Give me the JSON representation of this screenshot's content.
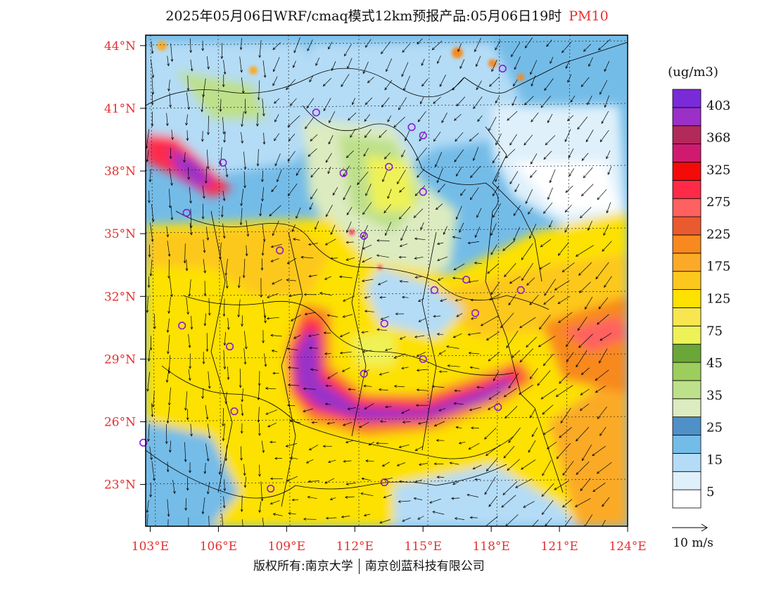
{
  "title": {
    "main": "2025年05月06日WRF/cmaq模式12km预报产品:05月06日19时",
    "pollutant": "PM10"
  },
  "map": {
    "lat_labels": [
      "44°N",
      "41°N",
      "38°N",
      "35°N",
      "32°N",
      "29°N",
      "26°N",
      "23°N"
    ],
    "lat_values": [
      44,
      41,
      38,
      35,
      32,
      29,
      26,
      23
    ],
    "lon_labels": [
      "103°E",
      "106°E",
      "109°E",
      "112°E",
      "115°E",
      "118°E",
      "121°E",
      "124°E"
    ],
    "lon_values": [
      103,
      106,
      109,
      112,
      115,
      118,
      121,
      124
    ],
    "lat_range": [
      21,
      44.5
    ],
    "lon_range": [
      102.8,
      124
    ],
    "label_color": "#e53030"
  },
  "legend": {
    "unit": "(ug/m3)",
    "ticks": [
      "5",
      "15",
      "25",
      "35",
      "45",
      "75",
      "125",
      "175",
      "225",
      "275",
      "325",
      "368",
      "403"
    ],
    "colors": [
      "#ffffff",
      "#dff0fb",
      "#b4dcf6",
      "#74bce8",
      "#4f90c9",
      "#dcebc0",
      "#bde08a",
      "#9dcd5c",
      "#6aa638",
      "#eef256",
      "#f8e650",
      "#fde100",
      "#fdc81e",
      "#fbaa28",
      "#f8891e",
      "#e95a2e",
      "#ff6060",
      "#ff2a48",
      "#f50a0a",
      "#d01a70",
      "#b22a5a",
      "#9a30c8",
      "#7a2bd8"
    ]
  },
  "wind": {
    "scale_label": "10 m/s"
  },
  "cities": [
    {
      "lon": 110.3,
      "lat": 40.8
    },
    {
      "lon": 115.0,
      "lat": 39.7
    },
    {
      "lon": 114.5,
      "lat": 40.1
    },
    {
      "lon": 118.5,
      "lat": 42.9
    },
    {
      "lon": 106.2,
      "lat": 38.4
    },
    {
      "lon": 111.5,
      "lat": 37.9
    },
    {
      "lon": 113.5,
      "lat": 38.2
    },
    {
      "lon": 115.0,
      "lat": 37.0
    },
    {
      "lon": 104.6,
      "lat": 36.0
    },
    {
      "lon": 112.4,
      "lat": 34.9
    },
    {
      "lon": 108.7,
      "lat": 34.2
    },
    {
      "lon": 116.9,
      "lat": 32.8
    },
    {
      "lon": 119.3,
      "lat": 32.3
    },
    {
      "lon": 115.5,
      "lat": 32.3
    },
    {
      "lon": 117.3,
      "lat": 31.2
    },
    {
      "lon": 104.4,
      "lat": 30.6
    },
    {
      "lon": 113.3,
      "lat": 30.7
    },
    {
      "lon": 106.5,
      "lat": 29.6
    },
    {
      "lon": 115.0,
      "lat": 29.0
    },
    {
      "lon": 112.4,
      "lat": 28.3
    },
    {
      "lon": 106.7,
      "lat": 26.5
    },
    {
      "lon": 102.7,
      "lat": 25.0
    },
    {
      "lon": 108.3,
      "lat": 22.8
    },
    {
      "lon": 113.3,
      "lat": 23.1
    },
    {
      "lon": 118.3,
      "lat": 26.7
    }
  ],
  "credit": {
    "left": "版权所有:南京大学",
    "right": "南京创蓝科技有限公司"
  }
}
